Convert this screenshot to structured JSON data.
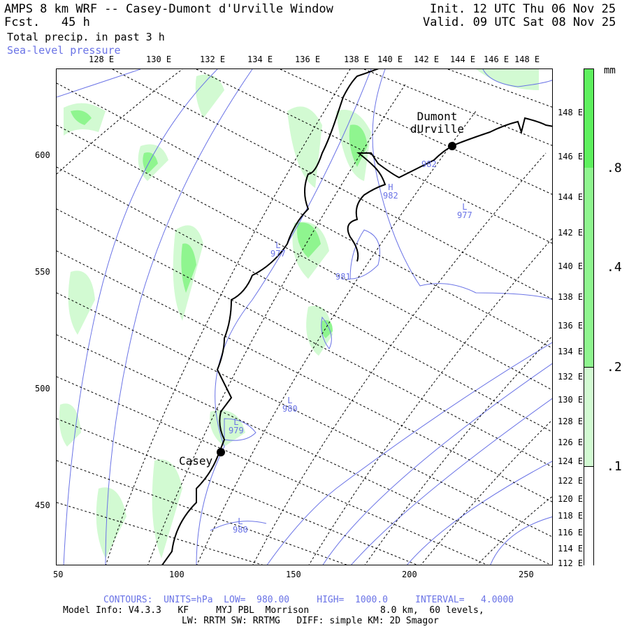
{
  "header": {
    "title": "AMPS 8 km WRF -- Casey-Dumont d'Urville Window",
    "fcst_label": "Fcst.   45 h",
    "field1": "Total precip. in past 3 h",
    "field2": "Sea-level pressure",
    "init": "Init. 12 UTC Thu 06 Nov 25",
    "valid": "Valid. 09 UTC Sat 08 Nov 25"
  },
  "top_lon_ticks": [
    "128 E",
    "130 E",
    "132 E",
    "134 E",
    "136 E",
    "138 E",
    "140 E",
    "142 E",
    "144 E",
    "146 E",
    "148 E"
  ],
  "right_lon_ticks": [
    "148 E",
    "146 E",
    "144 E",
    "142 E",
    "140 E",
    "138 E",
    "136 E",
    "134 E",
    "132 E",
    "130 E",
    "128 E",
    "126 E",
    "124 E",
    "122 E",
    "120 E",
    "118 E",
    "116 E",
    "114 E",
    "112 E"
  ],
  "left_y_ticks": [
    "600",
    "550",
    "500",
    "450"
  ],
  "bottom_x_ticks": [
    "50",
    "100",
    "150",
    "200",
    "250"
  ],
  "colorbar": {
    "units": "mm",
    "labels": [
      ".8",
      ".4",
      ".2",
      ".1"
    ],
    "colors": [
      "#5ef05e",
      "#8ff58f",
      "#d2fad2",
      "#ffffff"
    ]
  },
  "places": [
    {
      "name": "Dumont\ndUrville"
    },
    {
      "name": "Casey"
    }
  ],
  "pressure_labels": [
    {
      "type": "",
      "value": "982"
    },
    {
      "type": "H",
      "value": "982"
    },
    {
      "type": "L",
      "value": "977"
    },
    {
      "type": "L",
      "value": "977"
    },
    {
      "type": "",
      "value": "981"
    },
    {
      "type": "L",
      "value": "980"
    },
    {
      "type": "L",
      "value": "979"
    },
    {
      "type": "L",
      "value": "980"
    }
  ],
  "footer": {
    "contours": "CONTOURS:  UNITS=hPa  LOW=  980.00     HIGH=  1000.0     INTERVAL=   4.0000",
    "model": "Model Info: V4.3.3   KF     MYJ PBL  Morrison             8.0 km,  60 levels,",
    "physics": "LW: RRTM SW: RRTMG   DIFF: simple KM: 2D Smagor"
  },
  "colors": {
    "contour": "#6a73e6",
    "coast": "#000000",
    "precip_light": "#d2fad2",
    "precip_mid": "#8ff58f"
  }
}
